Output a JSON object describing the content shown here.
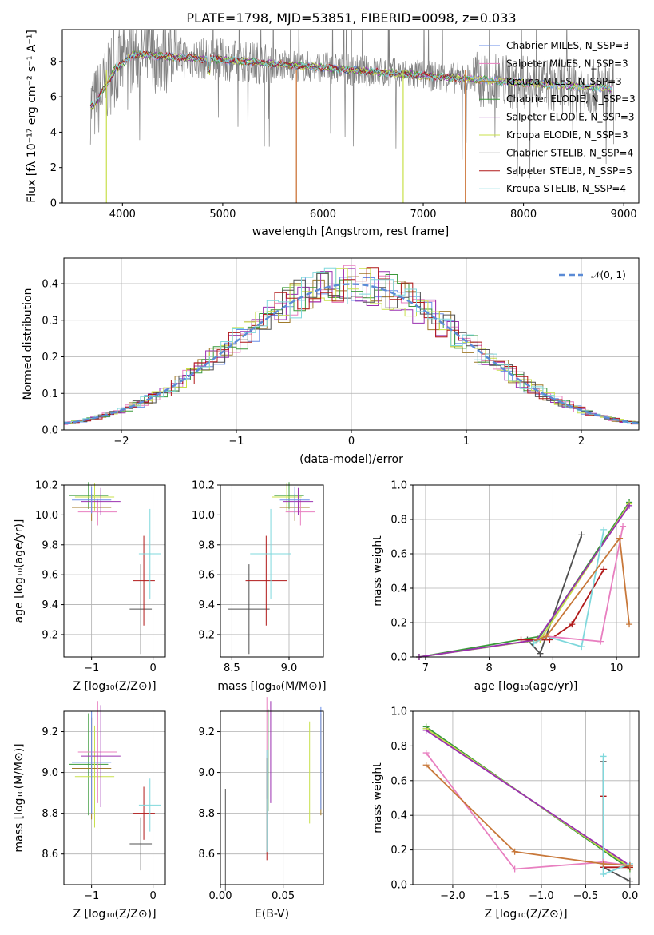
{
  "title": "PLATE=1798, MJD=53851, FIBERID=0098, z=0.033",
  "legend": [
    {
      "label": "Chabrier MILES, N_SSP=3",
      "color": "#6a8ee8"
    },
    {
      "label": "Salpeter MILES, N_SSP=3",
      "color": "#e87fc0"
    },
    {
      "label": "Kroupa MILES, N_SSP=3",
      "color": "#a07a2a"
    },
    {
      "label": "Chabrier ELODIE, N_SSP=3",
      "color": "#3a9a3a"
    },
    {
      "label": "Salpeter ELODIE, N_SSP=3",
      "color": "#9b30b0"
    },
    {
      "label": "Kroupa ELODIE, N_SSP=3",
      "color": "#c8e04a"
    },
    {
      "label": "Chabrier STELIB, N_SSP=4",
      "color": "#505050"
    },
    {
      "label": "Salpeter STELIB, N_SSP=5",
      "color": "#b01818"
    },
    {
      "label": "Kroupa STELIB, N_SSP=4",
      "color": "#7fd8dc"
    }
  ],
  "labels": {
    "spec_x": "wavelength [Angstrom, rest frame]",
    "spec_y": "Flux [fλ 10⁻¹⁷ erg cm⁻² s⁻¹ A⁻¹]",
    "hist_x": "(data-model)/error",
    "hist_y": "Normed distribution",
    "hist_legend": "𝒩(0, 1)",
    "age_y": "age  [log₁₀(age/yr)]",
    "z_x": "Z [log₁₀(Z/Z⊙)]",
    "mass_x": "mass [log₁₀(M/M⊙)]",
    "mass_y": "mass [log₁₀(M/M⊙)]",
    "mw_y": "mass weight",
    "agex": "age  [log₁₀(age/yr)]",
    "ebv_x": "E(B-V)"
  },
  "chart_data": [
    {
      "type": "line",
      "name": "spectrum",
      "xlim": [
        3400,
        9150
      ],
      "ylim": [
        0,
        9.8
      ],
      "xticks": [
        4000,
        5000,
        6000,
        7000,
        8000,
        9000
      ],
      "yticks": [
        0,
        2,
        4,
        6,
        8
      ],
      "grid": false,
      "legend_position": "right"
    },
    {
      "type": "bar",
      "name": "residual histogram",
      "xlim": [
        -2.5,
        2.5
      ],
      "ylim": [
        0,
        0.47
      ],
      "xticks": [
        -2,
        -1,
        0,
        1,
        2
      ],
      "yticks": [
        0.0,
        0.1,
        0.2,
        0.3,
        0.4
      ],
      "grid": true,
      "legend_position": "top-right",
      "reference": "gaussian N(0,1)"
    },
    {
      "type": "scatter",
      "name": "age vs Z",
      "xlim": [
        -1.45,
        0.2
      ],
      "ylim": [
        9.05,
        10.2
      ],
      "xticks": [
        -1,
        0
      ],
      "yticks": [
        9.2,
        9.4,
        9.6,
        9.8,
        10.0,
        10.2
      ],
      "points": [
        {
          "x": -1.05,
          "y": 10.13,
          "c": "#3a9a3a"
        },
        {
          "x": -0.95,
          "y": 10.12,
          "c": "#c8e04a"
        },
        {
          "x": -1.0,
          "y": 10.05,
          "c": "#a07a2a"
        },
        {
          "x": -0.9,
          "y": 10.02,
          "c": "#e87fc0"
        },
        {
          "x": -0.85,
          "y": 10.09,
          "c": "#9b30b0"
        },
        {
          "x": -1.0,
          "y": 10.1,
          "c": "#6a8ee8"
        },
        {
          "x": -0.2,
          "y": 9.37,
          "c": "#505050"
        },
        {
          "x": -0.15,
          "y": 9.56,
          "c": "#b01818"
        },
        {
          "x": -0.05,
          "y": 9.74,
          "c": "#7fd8dc"
        }
      ]
    },
    {
      "type": "scatter",
      "name": "age vs mass",
      "xlim": [
        8.4,
        9.3
      ],
      "ylim": [
        9.05,
        10.2
      ],
      "xticks": [
        8.5,
        9.0
      ],
      "yticks": [
        9.2,
        9.4,
        9.6,
        9.8,
        10.0,
        10.2
      ],
      "points": [
        {
          "x": 9.0,
          "y": 10.13,
          "c": "#3a9a3a"
        },
        {
          "x": 8.98,
          "y": 10.12,
          "c": "#c8e04a"
        },
        {
          "x": 9.05,
          "y": 10.05,
          "c": "#a07a2a"
        },
        {
          "x": 9.1,
          "y": 10.02,
          "c": "#e87fc0"
        },
        {
          "x": 9.08,
          "y": 10.09,
          "c": "#9b30b0"
        },
        {
          "x": 9.05,
          "y": 10.1,
          "c": "#6a8ee8"
        },
        {
          "x": 8.65,
          "y": 9.37,
          "c": "#505050"
        },
        {
          "x": 8.8,
          "y": 9.56,
          "c": "#b01818"
        },
        {
          "x": 8.84,
          "y": 9.74,
          "c": "#7fd8dc"
        }
      ]
    },
    {
      "type": "line",
      "name": "mass weight vs age",
      "xlim": [
        6.8,
        10.35
      ],
      "ylim": [
        0,
        1.0
      ],
      "xticks": [
        7,
        8,
        9,
        10
      ],
      "yticks": [
        0.0,
        0.2,
        0.4,
        0.6,
        0.8,
        1.0
      ]
    },
    {
      "type": "scatter",
      "name": "mass vs Z",
      "xlim": [
        -1.45,
        0.2
      ],
      "ylim": [
        8.45,
        9.3
      ],
      "xticks": [
        -1,
        0
      ],
      "yticks": [
        8.6,
        8.8,
        9.0,
        9.2
      ]
    },
    {
      "type": "scatter",
      "name": "mass vs E(B-V)",
      "xlim": [
        0,
        0.082
      ],
      "ylim": [
        8.45,
        9.3
      ],
      "xticks": [
        0.0,
        0.05
      ],
      "yticks": [
        8.6,
        8.8,
        9.0,
        9.2
      ]
    },
    {
      "type": "line",
      "name": "mass weight vs Z",
      "xlim": [
        -2.45,
        0.1
      ],
      "ylim": [
        0,
        1.0
      ],
      "xticks": [
        -2.0,
        -1.5,
        -1.0,
        -0.5,
        0.0
      ],
      "yticks": [
        0.0,
        0.2,
        0.4,
        0.6,
        0.8,
        1.0
      ]
    }
  ]
}
